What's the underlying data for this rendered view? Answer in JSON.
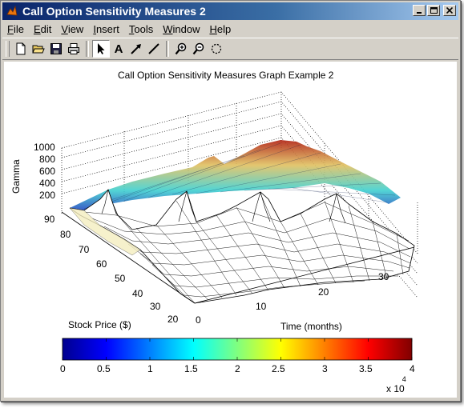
{
  "window": {
    "title": "Call Option Sensitivity Measures 2"
  },
  "menu": [
    {
      "label": "File",
      "key": "F",
      "rest": "ile"
    },
    {
      "label": "Edit",
      "key": "E",
      "rest": "dit"
    },
    {
      "label": "View",
      "key": "V",
      "rest": "iew"
    },
    {
      "label": "Insert",
      "key": "I",
      "rest": "nsert"
    },
    {
      "label": "Tools",
      "key": "T",
      "rest": "ools"
    },
    {
      "label": "Window",
      "key": "W",
      "rest": "indow"
    },
    {
      "label": "Help",
      "key": "H",
      "rest": "elp"
    }
  ],
  "toolbar": {
    "icons": [
      "new-file-icon",
      "open-folder-icon",
      "save-icon",
      "print-icon",
      "select-arrow-icon",
      "text-A-icon",
      "arrow-icon",
      "line-icon",
      "zoom-in-icon",
      "zoom-out-icon",
      "rotate-icon"
    ],
    "text_tool_label": "A"
  },
  "plot": {
    "title": "Call Option Sensitivity Measures Graph Example 2",
    "z_label": "Gamma",
    "z_ticks": [
      "1000",
      "800",
      "600",
      "400",
      "200"
    ],
    "y_label": "Stock Price ($)",
    "y_ticks": [
      "90",
      "80",
      "70",
      "60",
      "50",
      "40",
      "30",
      "20"
    ],
    "x_label": "Time (months)",
    "x_ticks": [
      "0",
      "10",
      "20",
      "30"
    ],
    "colorbar_ticks": [
      "0",
      "0.5",
      "1",
      "1.5",
      "2",
      "2.5",
      "3",
      "3.5",
      "4"
    ],
    "colorbar_multiplier": "x 10",
    "colorbar_exponent": "4"
  },
  "colors": {
    "title_bar_start": "#0a246a",
    "title_bar_end": "#a6caf0",
    "chrome": "#d4d0c8",
    "colormap": "jet"
  }
}
